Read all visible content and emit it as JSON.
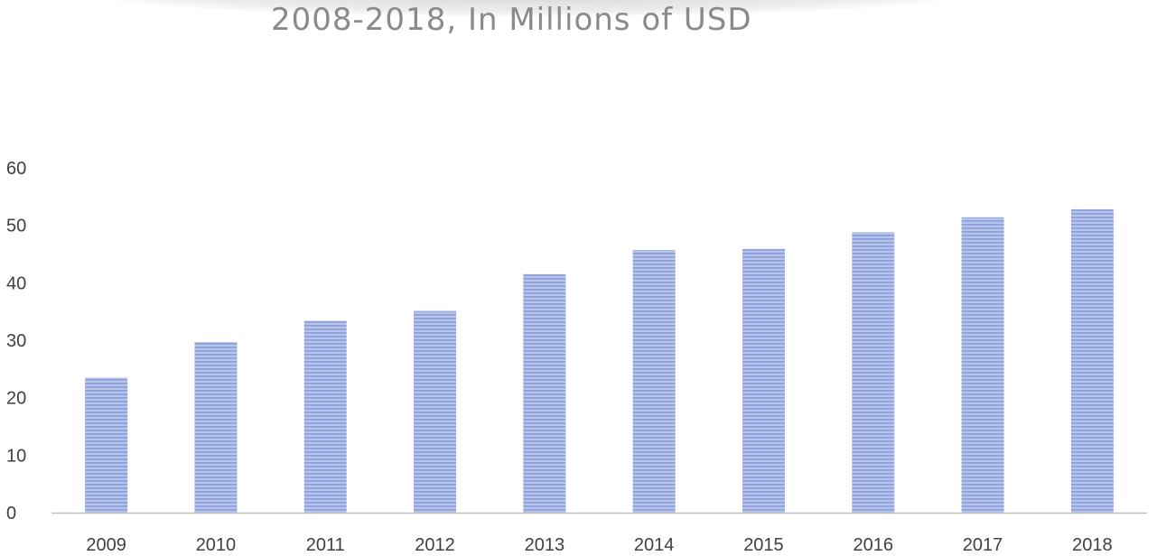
{
  "chart_data": {
    "type": "bar",
    "title": "2008-2018, In Millions of USD",
    "xlabel": "",
    "ylabel": "",
    "categories": [
      "2009",
      "2010",
      "2011",
      "2012",
      "2013",
      "2014",
      "2015",
      "2016",
      "2017",
      "2018"
    ],
    "values": [
      23.5,
      29.7,
      33.4,
      35.1,
      41.5,
      45.7,
      45.9,
      48.8,
      51.4,
      52.8
    ],
    "ylim": [
      0,
      60
    ],
    "yticks": [
      "0",
      "10",
      "20",
      "30",
      "40",
      "50",
      "60"
    ],
    "grid": false,
    "legend": "none",
    "colors": {
      "bar_fill": "#b6c3ea",
      "bar_stripe": "#8a9ddb",
      "axis": "#bfbfbf",
      "tick_text": "#404040",
      "title_text": "#8a8a8a"
    }
  }
}
